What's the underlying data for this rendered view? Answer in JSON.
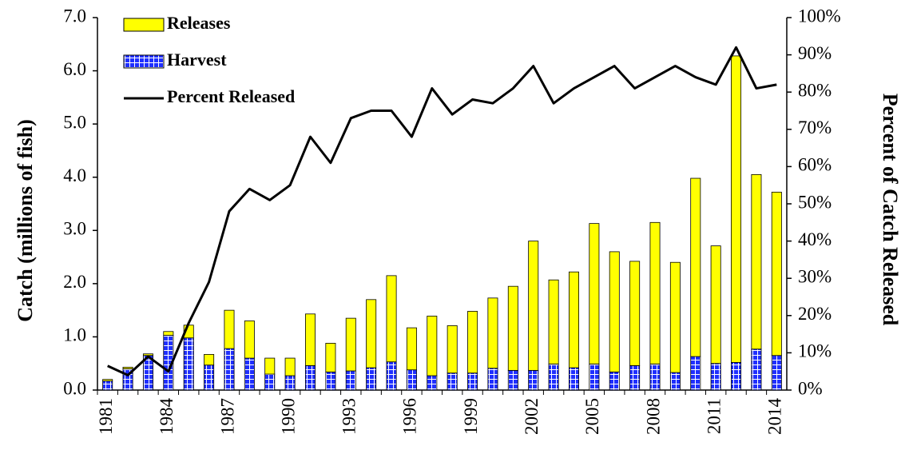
{
  "chart_data": {
    "type": "bar",
    "y_label": "Catch (millions of fish)",
    "y2_label": "Percent of Catch Released",
    "categories": [
      "1981",
      null,
      null,
      "1984",
      null,
      null,
      "1987",
      null,
      null,
      "1990",
      null,
      null,
      "1993",
      null,
      null,
      "1996",
      null,
      null,
      "1999",
      null,
      null,
      "2002",
      null,
      null,
      "2005",
      null,
      null,
      "2008",
      null,
      null,
      "2011",
      null,
      null,
      "2014"
    ],
    "series": [
      {
        "name": "Releases",
        "color": "#ffff00",
        "values": [
          0.03,
          0.03,
          0.03,
          0.07,
          0.24,
          0.2,
          0.72,
          0.7,
          0.3,
          0.33,
          0.97,
          0.54,
          0.99,
          1.28,
          1.62,
          0.79,
          1.12,
          0.89,
          1.16,
          1.32,
          1.58,
          2.43,
          1.58,
          1.8,
          2.64,
          2.26,
          1.96,
          2.66,
          2.07,
          3.35,
          2.21,
          5.76,
          3.28,
          3.07
        ]
      },
      {
        "name": "Harvest",
        "color": "#1f2fff",
        "values": [
          0.17,
          0.4,
          0.65,
          1.03,
          0.98,
          0.47,
          0.78,
          0.6,
          0.3,
          0.27,
          0.46,
          0.34,
          0.36,
          0.42,
          0.53,
          0.38,
          0.27,
          0.32,
          0.32,
          0.41,
          0.37,
          0.37,
          0.49,
          0.42,
          0.49,
          0.34,
          0.46,
          0.49,
          0.33,
          0.63,
          0.5,
          0.52,
          0.77,
          0.65
        ]
      },
      {
        "name": "Percent Released",
        "color": "#000000",
        "axis": "y2",
        "values": [
          6.5,
          4,
          9,
          5,
          18,
          29,
          48,
          54,
          51,
          55,
          68,
          61,
          73,
          75,
          75,
          68,
          81,
          74,
          78,
          77,
          81,
          87,
          77,
          81,
          84,
          87,
          81,
          84,
          87,
          84,
          82,
          92,
          81,
          82
        ]
      }
    ],
    "ylim": [
      0,
      7
    ],
    "yticks": [
      {
        "value": 0,
        "label": "0.0"
      },
      {
        "value": 1,
        "label": "1.0"
      },
      {
        "value": 2,
        "label": "2.0"
      },
      {
        "value": 3,
        "label": "3.0"
      },
      {
        "value": 4,
        "label": "4.0"
      },
      {
        "value": 5,
        "label": "5.0"
      },
      {
        "value": 6,
        "label": "6.0"
      },
      {
        "value": 7,
        "label": "7.0"
      }
    ],
    "y2lim": [
      0,
      100
    ],
    "y2ticks": [
      {
        "value": 0,
        "label": "0%"
      },
      {
        "value": 10,
        "label": "10%"
      },
      {
        "value": 20,
        "label": "20%"
      },
      {
        "value": 30,
        "label": "30%"
      },
      {
        "value": 40,
        "label": "40%"
      },
      {
        "value": 50,
        "label": "50%"
      },
      {
        "value": 60,
        "label": "60%"
      },
      {
        "value": 70,
        "label": "70%"
      },
      {
        "value": 80,
        "label": "80%"
      },
      {
        "value": 90,
        "label": "90%"
      },
      {
        "value": 100,
        "label": "100%"
      }
    ],
    "legend": "upper left"
  }
}
